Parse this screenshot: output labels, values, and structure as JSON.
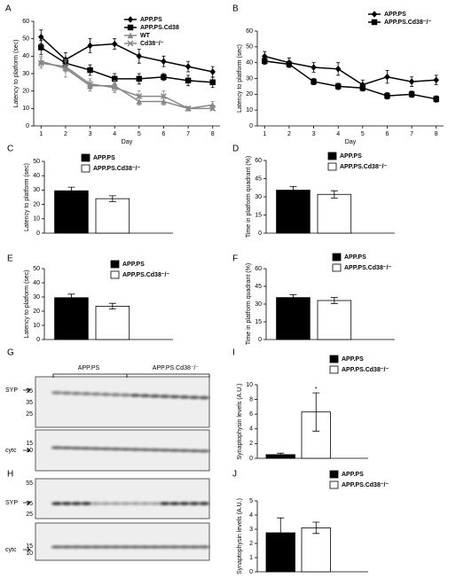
{
  "chart_data": [
    {
      "type": "line",
      "label": "A",
      "y_label": "Latency to platform (sec)",
      "x_label": "Day",
      "x": [
        1,
        2,
        3,
        4,
        5,
        6,
        7,
        8
      ],
      "xlim": [
        0.7,
        8.3
      ],
      "xticks": [
        1,
        2,
        3,
        4,
        5,
        6,
        7,
        8
      ],
      "ylim": [
        0,
        60
      ],
      "yticks": [
        0,
        10,
        20,
        30,
        40,
        50,
        60
      ],
      "series": [
        {
          "name": "APP.PS",
          "color": "#000000",
          "marker": "diamond",
          "values": [
            51,
            38,
            46,
            47,
            40,
            37,
            34,
            31
          ],
          "errors": [
            4,
            4,
            4,
            3,
            4,
            3,
            3,
            3
          ]
        },
        {
          "name": "APP.PS.Cd38",
          "color": "#000000",
          "marker": "square",
          "values": [
            45,
            36,
            32,
            27,
            27,
            28,
            26,
            25
          ],
          "errors": [
            4,
            3,
            3,
            3,
            3,
            2,
            3,
            3
          ]
        },
        {
          "name": "WT",
          "color": "#888888",
          "marker": "triangle",
          "values": [
            37,
            33,
            23,
            23,
            14,
            14,
            10,
            12
          ],
          "errors": [
            3,
            5,
            3,
            3,
            2,
            2,
            1,
            2
          ]
        },
        {
          "name": "Cd38⁻/⁻",
          "color": "#888888",
          "marker": "x",
          "values": [
            36,
            34,
            24,
            22,
            17,
            17,
            10,
            10
          ],
          "errors": [
            3,
            3,
            3,
            3,
            3,
            3,
            1,
            1
          ]
        }
      ]
    },
    {
      "type": "line",
      "label": "B",
      "y_label": "Latency to platform (sec)",
      "x_label": "Day",
      "x": [
        1,
        2,
        3,
        4,
        5,
        6,
        7,
        8
      ],
      "xlim": [
        0.7,
        8.3
      ],
      "xticks": [
        1,
        2,
        3,
        4,
        5,
        6,
        7,
        8
      ],
      "ylim": [
        0,
        60
      ],
      "yticks": [
        0,
        10,
        20,
        30,
        40,
        50,
        60
      ],
      "series": [
        {
          "name": "APP.PS",
          "color": "#000000",
          "marker": "diamond",
          "values": [
            44,
            40,
            37,
            36,
            26,
            31,
            28,
            29
          ],
          "errors": [
            3,
            3,
            3,
            4,
            3,
            4,
            3,
            3
          ]
        },
        {
          "name": "APP.PS.Cd38⁻/⁻",
          "color": "#000000",
          "marker": "square",
          "values": [
            41,
            39,
            28,
            25,
            24,
            19,
            20,
            17
          ],
          "errors": [
            2,
            2,
            2,
            2,
            2,
            2,
            2,
            2
          ]
        }
      ]
    },
    {
      "type": "bar",
      "label": "C",
      "y_label": "Latency to platform (sec)",
      "ylim": [
        0,
        50
      ],
      "yticks": [
        0,
        10,
        20,
        30,
        40,
        50
      ],
      "series": [
        {
          "name": "APP.PS",
          "color": "#000000",
          "values": [
            29.5
          ],
          "errors": [
            2.5
          ]
        },
        {
          "name": "APP.PS.Cd38⁻/⁻",
          "color": "#ffffff",
          "values": [
            24
          ],
          "errors": [
            2
          ]
        }
      ]
    },
    {
      "type": "bar",
      "label": "D",
      "y_label": "Time in platform quadrant (%)",
      "ylim": [
        0,
        60
      ],
      "yticks": [
        0,
        15,
        30,
        45,
        60
      ],
      "series": [
        {
          "name": "APP.PS",
          "color": "#000000",
          "values": [
            35.5
          ],
          "errors": [
            3
          ]
        },
        {
          "name": "APP.PS.Cd38⁻/⁻",
          "color": "#ffffff",
          "values": [
            32
          ],
          "errors": [
            3
          ]
        }
      ]
    },
    {
      "type": "bar",
      "label": "E",
      "y_label": "Latency to platform (sec)",
      "ylim": [
        0,
        50
      ],
      "yticks": [
        0,
        10,
        20,
        30,
        40,
        50
      ],
      "series": [
        {
          "name": "APP.PS",
          "color": "#000000",
          "values": [
            29.5
          ],
          "errors": [
            2.5
          ]
        },
        {
          "name": "APP.PS.Cd38⁻/⁻",
          "color": "#ffffff",
          "values": [
            23.5
          ],
          "errors": [
            2
          ]
        }
      ]
    },
    {
      "type": "bar",
      "label": "F",
      "y_label": "Time in platform quadrant (%)",
      "ylim": [
        0,
        60
      ],
      "yticks": [
        0,
        15,
        30,
        45,
        60
      ],
      "series": [
        {
          "name": "APP.PS",
          "color": "#000000",
          "values": [
            35.5
          ],
          "errors": [
            2.5
          ]
        },
        {
          "name": "APP.PS.Cd38⁻/⁻",
          "color": "#ffffff",
          "values": [
            33
          ],
          "errors": [
            2.5
          ]
        }
      ]
    },
    {
      "type": "bar",
      "label": "I",
      "y_label": "Synaptophysin levels (A.U.)",
      "ylim": [
        0,
        10
      ],
      "yticks": [
        0,
        2,
        4,
        6,
        8,
        10
      ],
      "annotation": "*",
      "series": [
        {
          "name": "APP.PS",
          "color": "#000000",
          "values": [
            0.5
          ],
          "errors": [
            0.2
          ]
        },
        {
          "name": "APP.PS.Cd38⁻/⁻",
          "color": "#ffffff",
          "values": [
            6.3
          ],
          "errors": [
            2.6
          ]
        }
      ]
    },
    {
      "type": "bar",
      "label": "J",
      "y_label": "Synaptophysin levels (A.U.)",
      "ylim": [
        0,
        5
      ],
      "yticks": [
        0,
        1,
        2,
        3,
        4,
        5
      ],
      "series": [
        {
          "name": "APP.PS",
          "color": "#000000",
          "values": [
            2.75
          ],
          "errors": [
            1.05
          ]
        },
        {
          "name": "APP.PS.Cd38⁻/⁻",
          "color": "#ffffff",
          "values": [
            3.1
          ],
          "errors": [
            0.4
          ]
        }
      ]
    }
  ],
  "blots": [
    {
      "label": "G",
      "groups": [
        "APP.PS",
        "APP.PS.Cd38⁻/⁻"
      ],
      "top_band": "SYP",
      "top_markers": [
        55,
        35,
        25
      ],
      "bottom_band": "cytc",
      "bottom_markers": [
        15,
        10
      ]
    },
    {
      "label": "H",
      "top_band": "SYP",
      "top_markers": [
        55,
        35,
        25
      ],
      "bottom_band": "cytc",
      "bottom_markers": [
        15,
        10
      ]
    }
  ]
}
